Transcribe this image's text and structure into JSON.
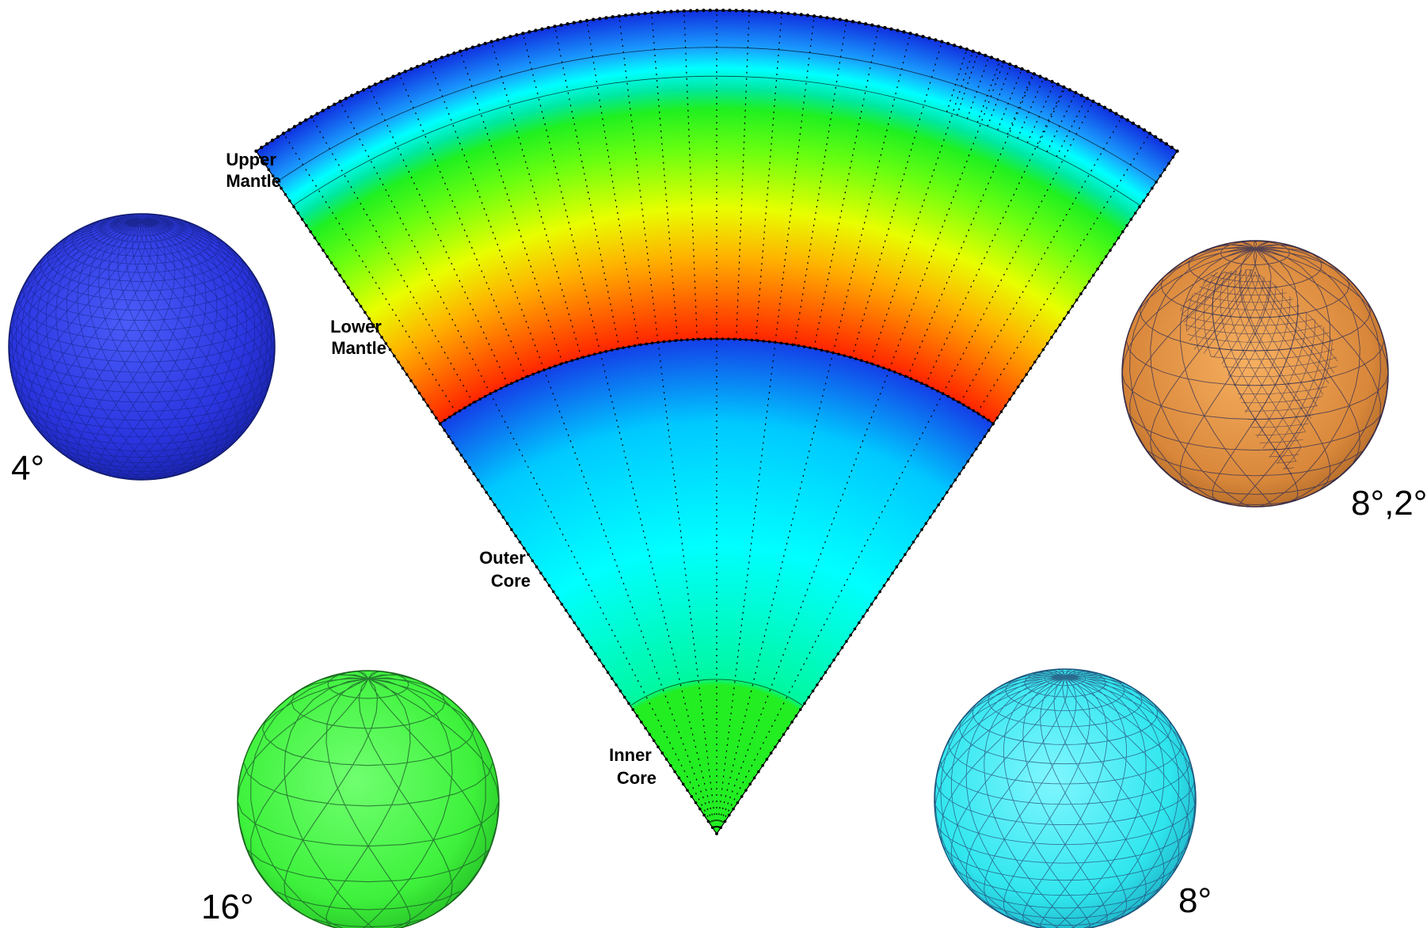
{
  "figure": {
    "layers": [
      {
        "line1": "Upper",
        "line2": "Mantle"
      },
      {
        "line1": "Lower",
        "line2": "Mantle"
      },
      {
        "line1": "Outer",
        "line2": "Core"
      },
      {
        "line1": "Inner",
        "line2": "Core"
      }
    ],
    "spheres": [
      {
        "label": "4°",
        "color": "#2a35e0",
        "mesh": "fine"
      },
      {
        "label": "8°,2°",
        "color": "#d9873a",
        "mesh": "locally-refined"
      },
      {
        "label": "16°",
        "color": "#3ef23c",
        "mesh": "coarse"
      },
      {
        "label": "8°",
        "color": "#30e6ee",
        "mesh": "medium"
      }
    ],
    "colors": {
      "mantle_top": "#1a3cf0",
      "mantle_mid": "#00ff40",
      "mantle_cmb": "#ff3000",
      "outer_core": "#00ffff",
      "inner_core": "#22ee22"
    }
  }
}
